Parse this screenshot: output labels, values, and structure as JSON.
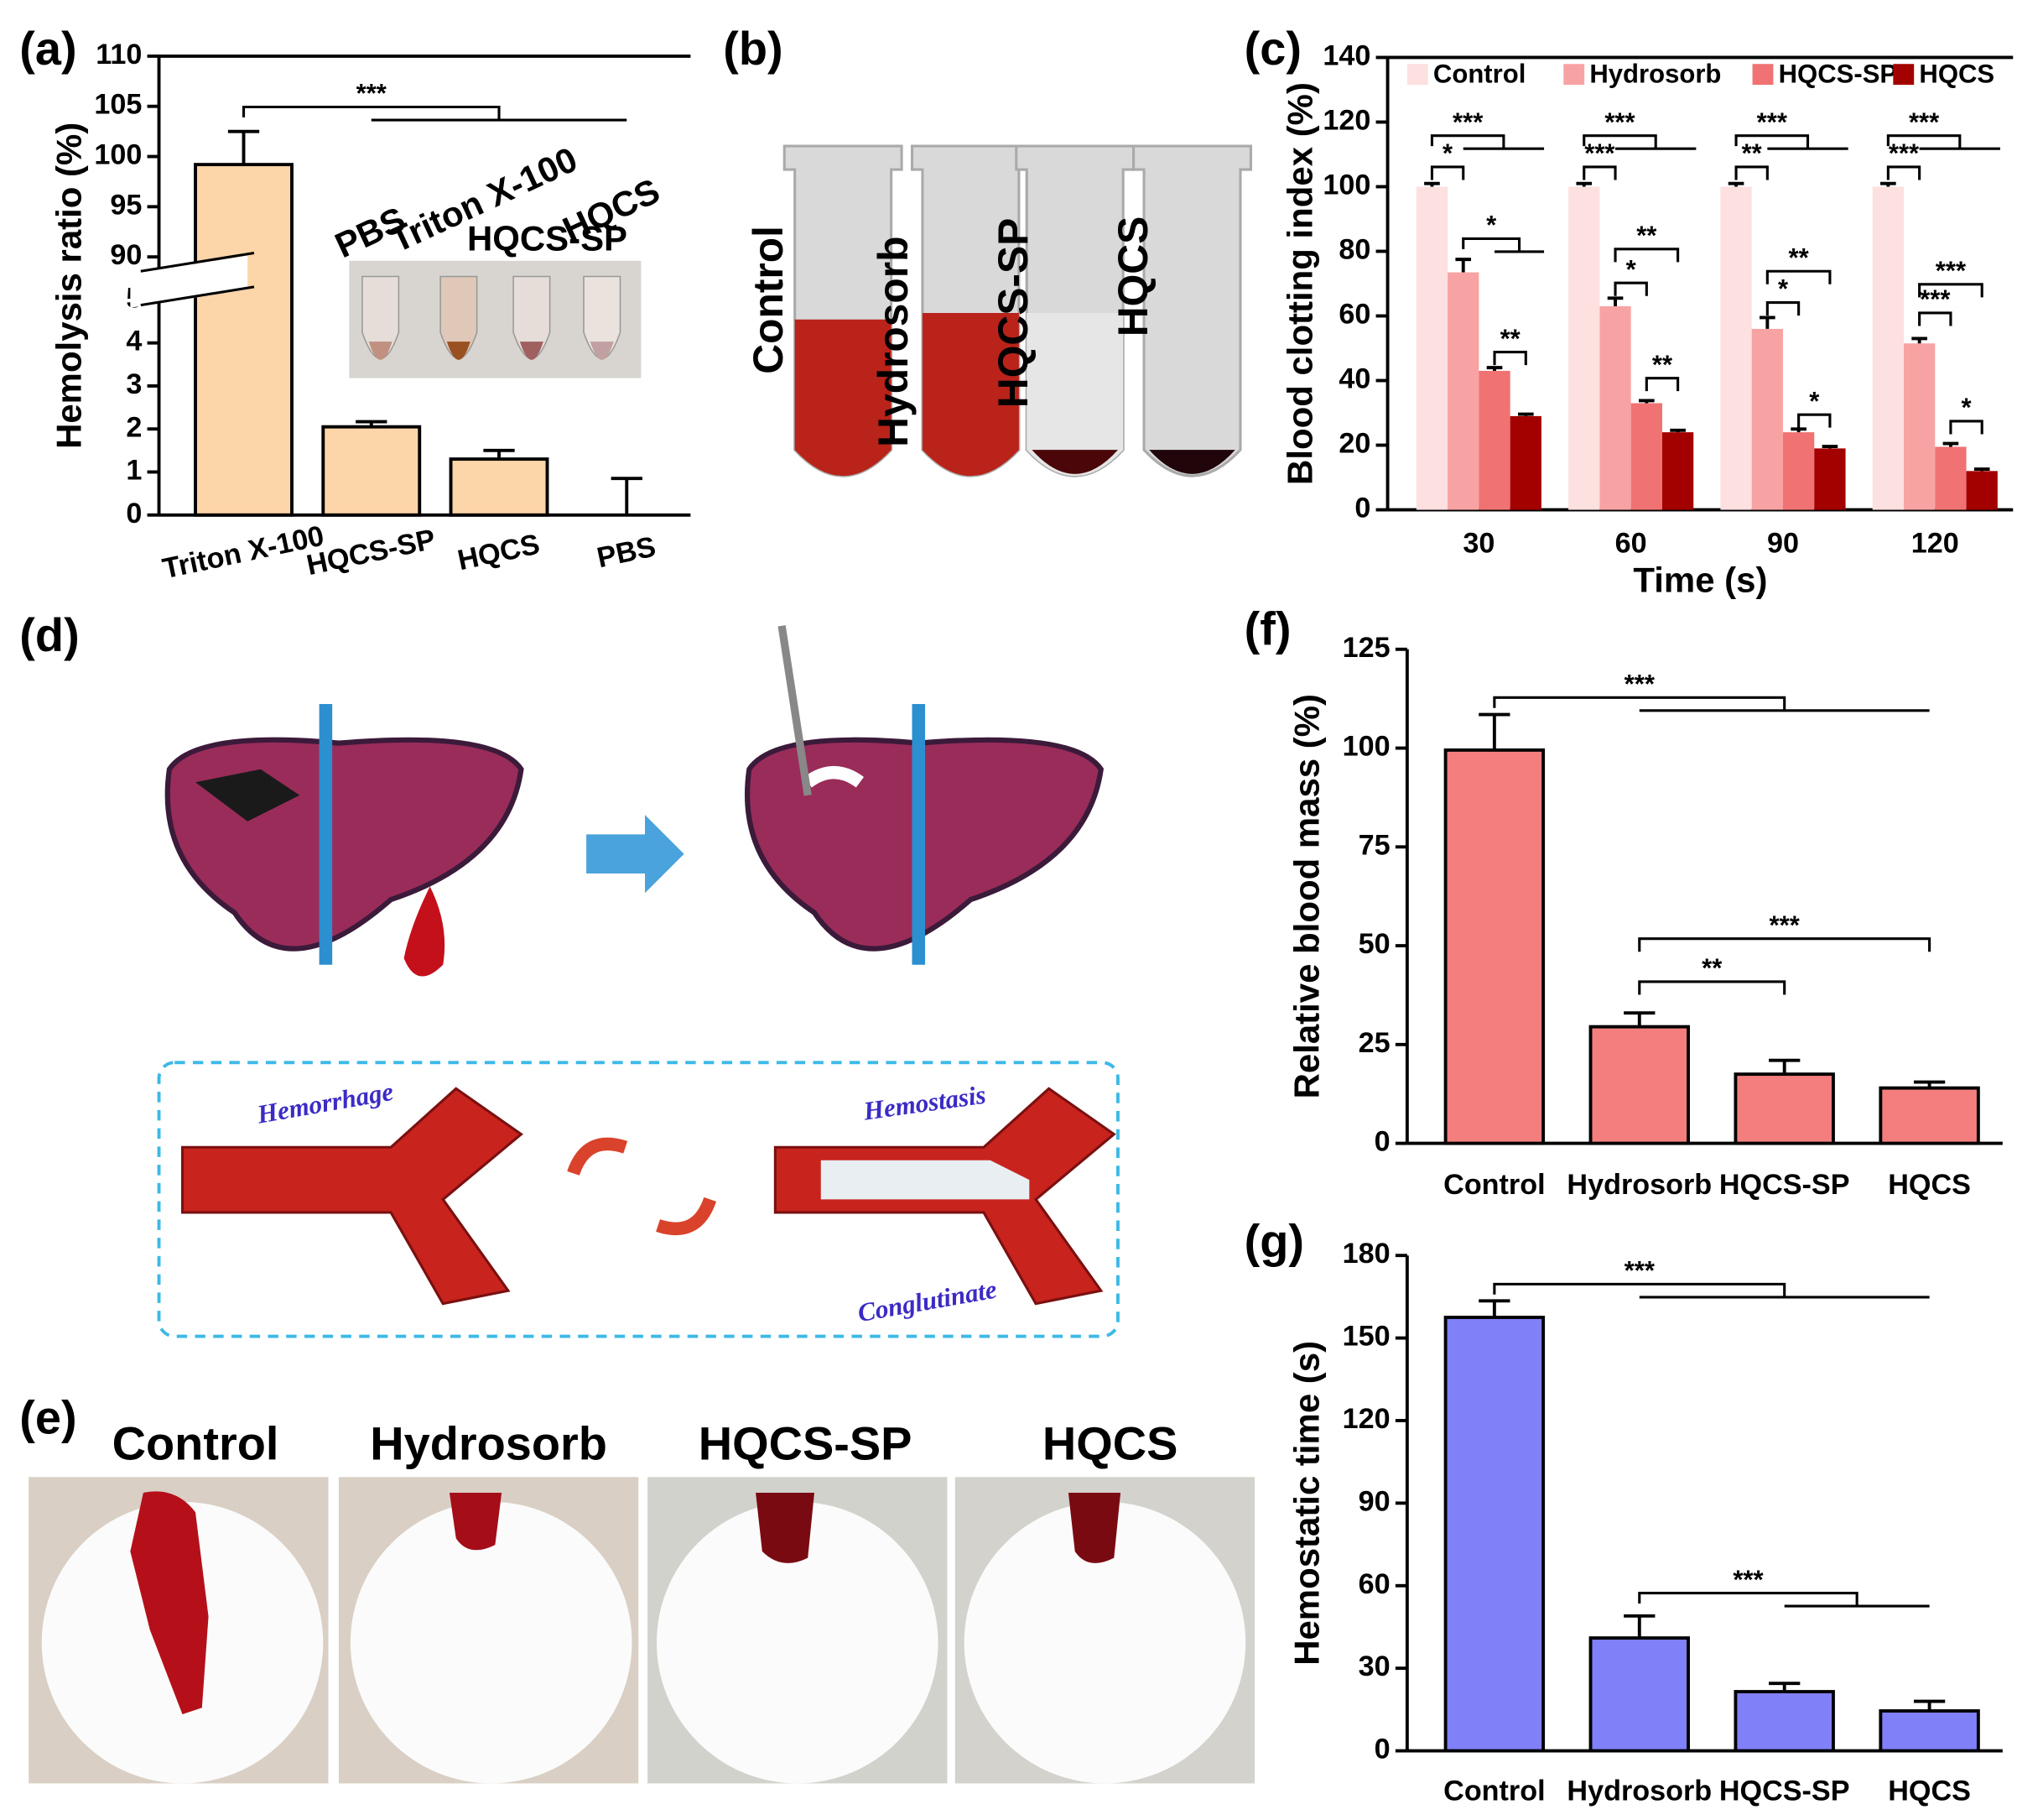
{
  "chart_data": [
    {
      "type": "bar",
      "panel_label": "(a)",
      "y_label": "Hemolysis ratio (%)",
      "categories": [
        "Triton X-100",
        "HQCS-SP",
        "HQCS",
        "PBS"
      ],
      "values": [
        99.2,
        2.05,
        1.3,
        0
      ],
      "errors": [
        3.3,
        0.12,
        0.2,
        0.85
      ],
      "color": "#fcd5a8",
      "ylim": [
        0,
        110
      ],
      "ybreak": [
        5,
        90
      ],
      "yticks": [
        0,
        1,
        2,
        3,
        4,
        5,
        90,
        95,
        100,
        105,
        110
      ],
      "annotations": [
        "***"
      ],
      "inset_labels": [
        "PBS",
        "Triton X-100",
        "HQCS-SP",
        "HQCS"
      ]
    },
    {
      "type": "bar",
      "panel_label": "(c)",
      "y_label": "Blood clotting index (%)",
      "x_label": "Time (s)",
      "categories": [
        "30",
        "60",
        "90",
        "120"
      ],
      "series": [
        {
          "name": "Control",
          "color": "#fde0e0",
          "values": [
            100,
            100,
            100,
            100
          ],
          "errors": [
            1,
            1,
            1,
            1
          ]
        },
        {
          "name": "Hydrosorb",
          "color": "#f8a3a3",
          "values": [
            73.5,
            63,
            56,
            51.5
          ],
          "errors": [
            4,
            2.5,
            3.5,
            1.5
          ]
        },
        {
          "name": "HQCS-SP",
          "color": "#f07272",
          "values": [
            43,
            33,
            24,
            19.5
          ],
          "errors": [
            1,
            0.8,
            1,
            1
          ]
        },
        {
          "name": "HQCS",
          "color": "#a30000",
          "values": [
            29,
            24,
            19,
            12
          ],
          "errors": [
            0.6,
            0.6,
            0.6,
            0.6
          ]
        }
      ],
      "ylim": [
        0,
        140
      ],
      "yticks": [
        0,
        20,
        40,
        60,
        80,
        100,
        120,
        140
      ],
      "annotations": [
        [
          "***",
          "*",
          "*",
          "**"
        ],
        [
          "***",
          "***",
          "**",
          "*",
          "**"
        ],
        [
          "***",
          "**",
          "**",
          "*",
          "*"
        ],
        [
          "***",
          "***",
          "***",
          "***",
          "*"
        ]
      ]
    },
    {
      "type": "bar",
      "panel_label": "(f)",
      "y_label": "Relative blood mass (%)",
      "categories": [
        "Control",
        "Hydrosorb",
        "HQCS-SP",
        "HQCS"
      ],
      "values": [
        99.5,
        29.5,
        17.5,
        14
      ],
      "errors": [
        9,
        3.5,
        3.5,
        1.5
      ],
      "color": "#f47e7e",
      "ylim": [
        0,
        125
      ],
      "yticks": [
        0,
        25,
        50,
        75,
        100,
        125
      ],
      "annotations": [
        "***",
        "***",
        "**"
      ]
    },
    {
      "type": "bar",
      "panel_label": "(g)",
      "y_label": "Hemostatic time (s)",
      "categories": [
        "Control",
        "Hydrosorb",
        "HQCS-SP",
        "HQCS"
      ],
      "values": [
        157.5,
        41,
        21.5,
        14.5
      ],
      "errors": [
        6,
        8,
        3,
        3.5
      ],
      "color": "#8080f8",
      "ylim": [
        0,
        180
      ],
      "yticks": [
        0,
        30,
        60,
        90,
        120,
        150,
        180
      ],
      "annotations": [
        "***",
        "***"
      ]
    }
  ],
  "panel_b": {
    "label": "(b)",
    "tubes": [
      "Control",
      "Hydrosorb",
      "HQCS-SP",
      "HQCS"
    ]
  },
  "panel_d": {
    "label": "(d)",
    "texts": [
      "Hemorrhage",
      "Hemostasis",
      "Conglutinate"
    ]
  },
  "panel_e": {
    "label": "(e)",
    "photos": [
      "Control",
      "Hydrosorb",
      "HQCS-SP",
      "HQCS"
    ]
  }
}
